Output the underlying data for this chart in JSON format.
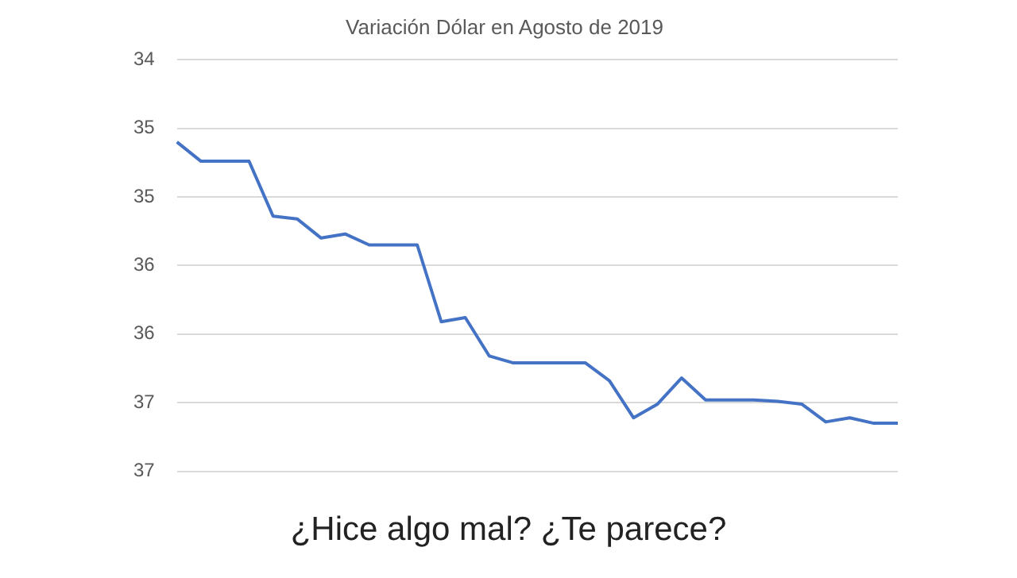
{
  "chart_data": {
    "type": "line",
    "title": "Variación Dólar en Agosto de 2019",
    "categories": [
      null,
      null,
      null,
      null,
      null,
      null,
      null,
      null,
      null,
      null,
      null,
      null,
      null,
      null,
      null,
      null,
      null,
      null,
      null,
      null,
      null,
      null,
      null,
      null,
      null,
      null,
      null,
      null,
      null,
      null,
      null
    ],
    "series": [
      {
        "color": "#4472c4",
        "values": [
          34.6,
          34.74,
          34.74,
          34.74,
          35.14,
          35.16,
          35.3,
          35.27,
          35.35,
          35.35,
          35.35,
          35.91,
          35.88,
          36.16,
          36.21,
          36.21,
          36.21,
          36.21,
          36.34,
          36.61,
          36.51,
          36.32,
          36.48,
          36.48,
          36.48,
          36.49,
          36.51,
          36.64,
          36.61,
          36.65,
          36.65
        ]
      }
    ],
    "ylim": [
      37,
      34
    ],
    "yticks": [
      {
        "value": 34,
        "label": "34"
      },
      {
        "value": 34.5,
        "label": "35"
      },
      {
        "value": 35,
        "label": "35"
      },
      {
        "value": 35.5,
        "label": "36"
      },
      {
        "value": 36,
        "label": "36"
      },
      {
        "value": 36.5,
        "label": "37"
      },
      {
        "value": 37,
        "label": "37"
      }
    ],
    "grid": "y",
    "marker": "none",
    "line_style": "solid",
    "legend": false,
    "annotations": [
      "¿Hice algo mal? ¿Te parece?"
    ]
  }
}
